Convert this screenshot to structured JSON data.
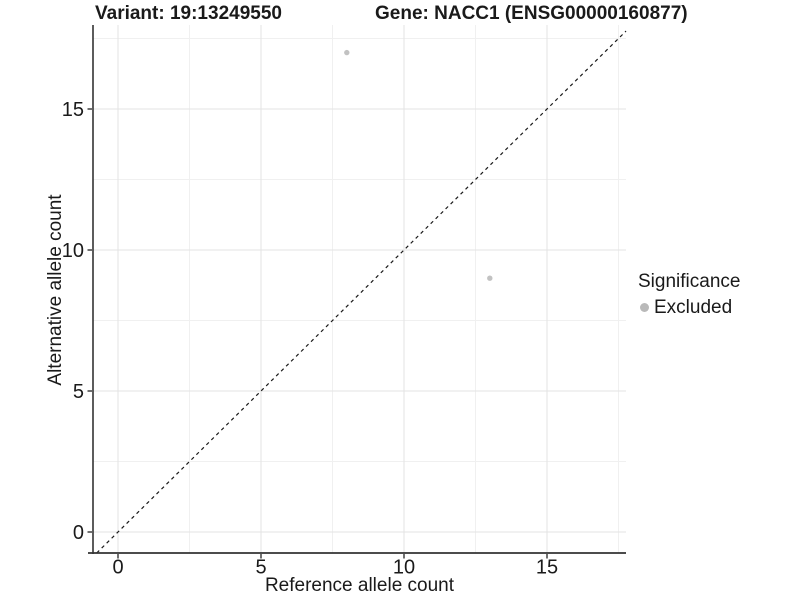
{
  "chart_data": {
    "type": "scatter",
    "title_left": "Variant: 19:13249550",
    "title_right": "Gene: NACC1 (ENSG00000160877)",
    "xlabel": "Reference allele count",
    "ylabel": "Alternative allele count",
    "xlim": [
      -0.9,
      17.8
    ],
    "ylim": [
      -0.75,
      18.0
    ],
    "x_ticks": [
      0,
      5,
      10,
      15
    ],
    "x_tick_labels": [
      "0",
      "5",
      "10",
      "15"
    ],
    "y_ticks": [
      0,
      5,
      10,
      15
    ],
    "y_tick_labels": [
      "0",
      "5",
      "10",
      "15"
    ],
    "x_minor_ticks": [
      2.5,
      7.5,
      12.5,
      17.5
    ],
    "y_minor_ticks": [
      2.5,
      7.5,
      12.5,
      17.5
    ],
    "grid": "major+minor",
    "legend_position": "right",
    "identity_line": {
      "slope": 1,
      "intercept": 0,
      "style": "dashed",
      "color": "#1a1a1a"
    },
    "series": [
      {
        "name": "Excluded",
        "color": "#c2c2c2",
        "points": [
          {
            "x": 8,
            "y": 17
          },
          {
            "x": 13,
            "y": 9
          }
        ]
      }
    ],
    "legend": {
      "title": "Significance",
      "items": [
        {
          "label": "Excluded",
          "color": "#b9b9b9"
        }
      ]
    },
    "style": {
      "grid_major_color": "#e3e3e3",
      "grid_minor_color": "#f0f0f0",
      "axis_color": "#333333",
      "text_color": "#1a1a1a",
      "background": "#ffffff",
      "point_radius": 2.7
    }
  }
}
